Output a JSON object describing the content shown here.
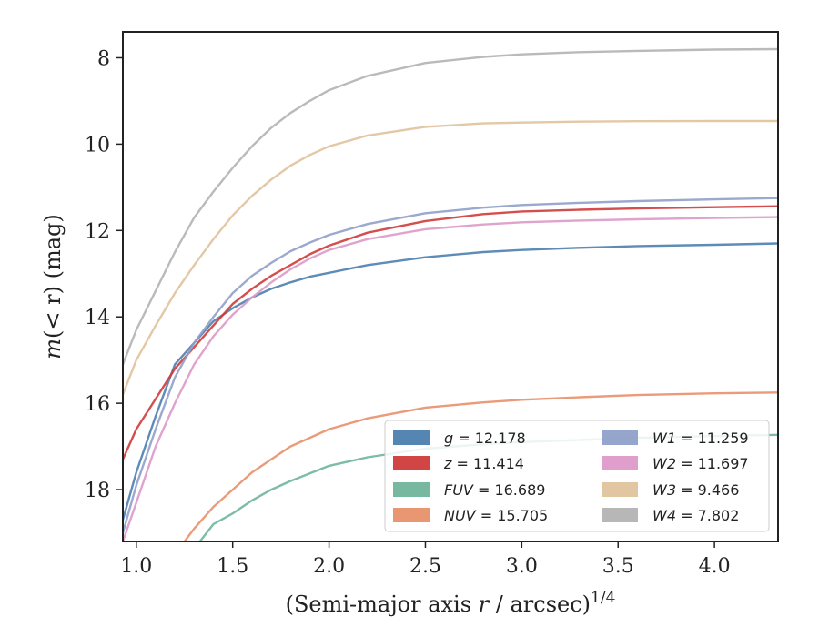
{
  "chart_data": {
    "type": "line",
    "title": "",
    "xlabel_main": "(Semi-major axis ",
    "xlabel_var": "r",
    "xlabel_rest": " / arcsec)",
    "xlabel_sup": "1/4",
    "ylabel_main": "m",
    "ylabel_rest": "(< r) (mag)",
    "ylabel": "m(< r) (mag)",
    "xlim": [
      0.93,
      4.33
    ],
    "ylim": [
      19.2,
      7.4
    ],
    "y_inverted": true,
    "grid": false,
    "xticks": [
      1.0,
      1.5,
      2.0,
      2.5,
      3.0,
      3.5,
      4.0
    ],
    "yticks": [
      8,
      10,
      12,
      14,
      16,
      18
    ],
    "legend_position": "lower-right",
    "legend_columns": 2,
    "series": [
      {
        "name": "g = 12.178",
        "label_var": "g",
        "label_value": "12.178",
        "color": "#4c7faf",
        "x": [
          0.93,
          1.0,
          1.1,
          1.2,
          1.3,
          1.4,
          1.5,
          1.6,
          1.7,
          1.8,
          1.9,
          2.0,
          2.2,
          2.5,
          2.8,
          3.0,
          3.3,
          3.6,
          4.0,
          4.33
        ],
        "y": [
          18.7,
          17.6,
          16.3,
          15.1,
          14.6,
          14.1,
          13.8,
          13.55,
          13.35,
          13.2,
          13.07,
          12.98,
          12.8,
          12.62,
          12.5,
          12.45,
          12.4,
          12.36,
          12.33,
          12.3
        ]
      },
      {
        "name": "z = 11.414",
        "label_var": "z",
        "label_value": "11.414",
        "color": "#d03b3b",
        "x": [
          0.93,
          1.0,
          1.1,
          1.2,
          1.3,
          1.4,
          1.5,
          1.6,
          1.7,
          1.8,
          1.9,
          2.0,
          2.2,
          2.5,
          2.8,
          3.0,
          3.3,
          3.6,
          4.0,
          4.33
        ],
        "y": [
          17.3,
          16.6,
          15.9,
          15.2,
          14.7,
          14.2,
          13.7,
          13.35,
          13.05,
          12.8,
          12.55,
          12.35,
          12.05,
          11.78,
          11.62,
          11.56,
          11.52,
          11.49,
          11.46,
          11.44
        ]
      },
      {
        "name": "FUV = 16.689",
        "label_var": "FUV",
        "label_value": "16.689",
        "color": "#6fb59b",
        "x": [
          1.33,
          1.4,
          1.5,
          1.6,
          1.7,
          1.8,
          2.0,
          2.2,
          2.5,
          2.8,
          3.0,
          3.3,
          3.6,
          4.0,
          4.33
        ],
        "y": [
          19.2,
          18.8,
          18.55,
          18.25,
          18.0,
          17.8,
          17.45,
          17.25,
          17.05,
          16.95,
          16.9,
          16.85,
          16.8,
          16.76,
          16.73
        ]
      },
      {
        "name": "NUV = 15.705",
        "label_var": "NUV",
        "label_value": "15.705",
        "color": "#e8906c",
        "x": [
          1.25,
          1.3,
          1.4,
          1.5,
          1.6,
          1.7,
          1.8,
          2.0,
          2.2,
          2.5,
          2.8,
          3.0,
          3.3,
          3.6,
          4.0,
          4.33
        ],
        "y": [
          19.2,
          18.9,
          18.4,
          18.0,
          17.6,
          17.3,
          17.0,
          16.6,
          16.35,
          16.1,
          15.98,
          15.92,
          15.86,
          15.81,
          15.77,
          15.75
        ]
      },
      {
        "name": "W1 = 11.259",
        "label_var": "W1",
        "label_value": "11.259",
        "color": "#8fa0c8",
        "x": [
          0.93,
          1.0,
          1.1,
          1.2,
          1.3,
          1.4,
          1.5,
          1.6,
          1.7,
          1.8,
          1.9,
          2.0,
          2.2,
          2.5,
          2.8,
          3.0,
          3.3,
          3.6,
          4.0,
          4.33
        ],
        "y": [
          19.0,
          17.9,
          16.6,
          15.4,
          14.6,
          14.0,
          13.45,
          13.05,
          12.75,
          12.48,
          12.28,
          12.1,
          11.85,
          11.6,
          11.47,
          11.41,
          11.36,
          11.32,
          11.28,
          11.25
        ]
      },
      {
        "name": "W2 = 11.697",
        "label_var": "W2",
        "label_value": "11.697",
        "color": "#dd99c9",
        "x": [
          0.93,
          1.0,
          1.1,
          1.2,
          1.3,
          1.4,
          1.5,
          1.6,
          1.7,
          1.8,
          1.9,
          2.0,
          2.2,
          2.5,
          2.8,
          3.0,
          3.3,
          3.6,
          4.0,
          4.33
        ],
        "y": [
          19.2,
          18.3,
          17.0,
          16.0,
          15.1,
          14.45,
          13.95,
          13.55,
          13.2,
          12.9,
          12.65,
          12.45,
          12.2,
          11.97,
          11.86,
          11.81,
          11.77,
          11.74,
          11.71,
          11.69
        ]
      },
      {
        "name": "W3 = 9.466",
        "label_var": "W3",
        "label_value": "9.466",
        "color": "#e0c29c",
        "x": [
          0.93,
          1.0,
          1.1,
          1.2,
          1.3,
          1.4,
          1.5,
          1.6,
          1.7,
          1.8,
          1.9,
          2.0,
          2.2,
          2.5,
          2.8,
          3.0,
          3.3,
          3.6,
          4.0,
          4.33
        ],
        "y": [
          15.8,
          15.0,
          14.2,
          13.45,
          12.8,
          12.2,
          11.65,
          11.2,
          10.82,
          10.5,
          10.25,
          10.05,
          9.8,
          9.6,
          9.52,
          9.5,
          9.48,
          9.47,
          9.466,
          9.466
        ]
      },
      {
        "name": "W4 = 7.802",
        "label_var": "W4",
        "label_value": "7.802",
        "color": "#b3b3b3",
        "x": [
          0.93,
          1.0,
          1.1,
          1.2,
          1.3,
          1.4,
          1.5,
          1.6,
          1.7,
          1.8,
          1.9,
          2.0,
          2.2,
          2.5,
          2.8,
          3.0,
          3.3,
          3.6,
          4.0,
          4.33
        ],
        "y": [
          15.1,
          14.3,
          13.4,
          12.5,
          11.7,
          11.1,
          10.55,
          10.05,
          9.62,
          9.28,
          9.0,
          8.75,
          8.42,
          8.12,
          7.98,
          7.92,
          7.87,
          7.84,
          7.81,
          7.8
        ]
      }
    ]
  }
}
